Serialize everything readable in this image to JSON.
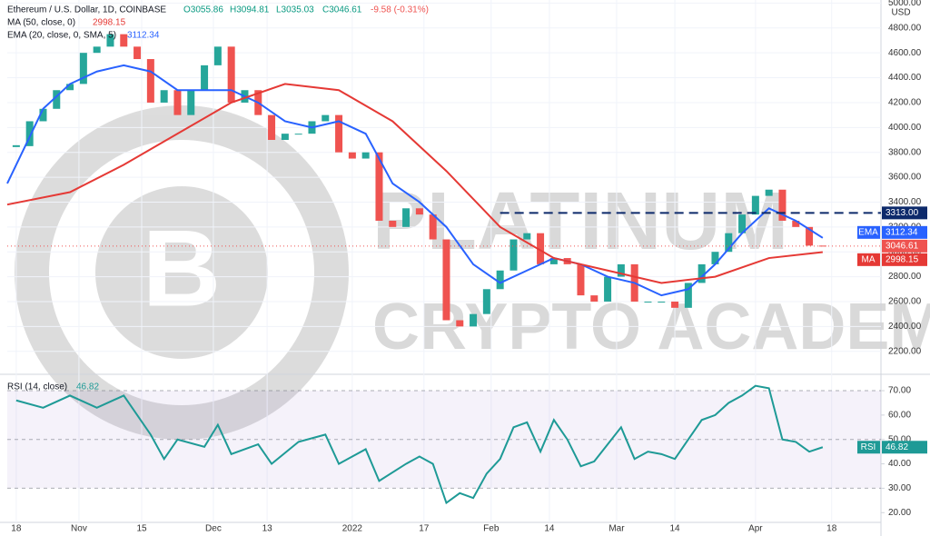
{
  "header": {
    "symbol": "Ethereum / U.S. Dollar, 1D, COINBASE",
    "open": "O3055.86",
    "high": "H3094.81",
    "low": "L3035.03",
    "close": "C3046.61",
    "change": "-9.58 (-0.31%)",
    "currency": "USD"
  },
  "watermark": {
    "line1": "PLATINUM",
    "line2": "CRYPTO ACADEMY"
  },
  "chart_data": [
    {
      "type": "candlestick",
      "xlim": [
        -2,
        193
      ],
      "ylim": [
        2030,
        5025
      ],
      "xticks": [
        {
          "value": 0,
          "label": "18"
        },
        {
          "value": 14,
          "label": "Nov"
        },
        {
          "value": 28,
          "label": "15"
        },
        {
          "value": 44,
          "label": "Dec"
        },
        {
          "value": 56,
          "label": "13"
        },
        {
          "value": 75,
          "label": "2022"
        },
        {
          "value": 91,
          "label": "17"
        },
        {
          "value": 106,
          "label": "Feb"
        },
        {
          "value": 119,
          "label": "14"
        },
        {
          "value": 134,
          "label": "Mar"
        },
        {
          "value": 147,
          "label": "14"
        },
        {
          "value": 165,
          "label": "Apr"
        },
        {
          "value": 182,
          "label": "18"
        }
      ],
      "yticks": [
        {
          "value": 2200,
          "label": "2200.00"
        },
        {
          "value": 2400,
          "label": "2400.00"
        },
        {
          "value": 2600,
          "label": "2600.00"
        },
        {
          "value": 2800,
          "label": "2800.00"
        },
        {
          "value": 3000,
          "label": "3000.00"
        },
        {
          "value": 3200,
          "label": "3200.00"
        },
        {
          "value": 3400,
          "label": "3400.00"
        },
        {
          "value": 3600,
          "label": "3600.00"
        },
        {
          "value": 3800,
          "label": "3800.00"
        },
        {
          "value": 4000,
          "label": "4000.00"
        },
        {
          "value": 4200,
          "label": "4200.00"
        },
        {
          "value": 4400,
          "label": "4400.00"
        },
        {
          "value": 4600,
          "label": "4600.00"
        },
        {
          "value": 4800,
          "label": "4800.00"
        },
        {
          "value": 5000,
          "label": "5000.00"
        }
      ],
      "grid": true,
      "up_color": "#26a69a",
      "down_color": "#ef5350",
      "candles": {
        "x": [
          0,
          3,
          6,
          9,
          12,
          15,
          18,
          21,
          24,
          27,
          30,
          33,
          36,
          39,
          42,
          45,
          48,
          51,
          54,
          57,
          60,
          63,
          66,
          69,
          72,
          75,
          78,
          81,
          84,
          87,
          90,
          93,
          96,
          99,
          102,
          105,
          108,
          111,
          114,
          117,
          120,
          123,
          126,
          129,
          132,
          135,
          138,
          141,
          144,
          147,
          150,
          153,
          156,
          159,
          162,
          165,
          168,
          171,
          174,
          177,
          180
        ],
        "close": [
          3850,
          4050,
          4150,
          4300,
          4350,
          4600,
          4650,
          4750,
          4650,
          4550,
          4200,
          4300,
          4100,
          4300,
          4500,
          4650,
          4200,
          4300,
          4100,
          3900,
          3950,
          3950,
          4050,
          4100,
          3800,
          3750,
          3800,
          3250,
          3200,
          3350,
          3300,
          3100,
          2450,
          2400,
          2500,
          2700,
          2850,
          3100,
          3150,
          2900,
          2950,
          2900,
          2650,
          2600,
          2800,
          2900,
          2600,
          2600,
          2600,
          2550,
          2750,
          2900,
          3000,
          3150,
          3300,
          3450,
          3500,
          3250,
          3200,
          3050,
          3046.61
        ]
      },
      "lines": [
        {
          "legend": "EMA (20, close, 0, SMA, 5)",
          "tag": "EMA",
          "value_label": "3112.34",
          "color": "#2962ff",
          "x": [
            -2,
            6,
            12,
            18,
            24,
            30,
            36,
            42,
            48,
            54,
            60,
            66,
            72,
            78,
            84,
            90,
            96,
            102,
            108,
            114,
            120,
            126,
            132,
            138,
            144,
            150,
            156,
            162,
            168,
            174,
            180
          ],
          "values": [
            3550,
            4150,
            4350,
            4450,
            4500,
            4450,
            4300,
            4300,
            4300,
            4200,
            4050,
            4000,
            4050,
            3950,
            3550,
            3400,
            3200,
            2900,
            2750,
            2850,
            2950,
            2900,
            2800,
            2750,
            2650,
            2700,
            2900,
            3150,
            3350,
            3250,
            3112.34
          ]
        },
        {
          "legend": "MA (50, close, 0)",
          "tag": "MA",
          "value_label": "2998.15",
          "color": "#e53935",
          "x": [
            -2,
            12,
            24,
            36,
            48,
            60,
            72,
            84,
            96,
            108,
            120,
            132,
            144,
            156,
            168,
            180
          ],
          "values": [
            3380,
            3480,
            3700,
            3950,
            4200,
            4350,
            4300,
            4050,
            3650,
            3200,
            2950,
            2850,
            2750,
            2800,
            2950,
            2998.15
          ]
        }
      ],
      "level": {
        "value": 3313,
        "label": "3313.00",
        "x_start": 108,
        "color": "#0d2a6b"
      },
      "last_price": {
        "value": 3046.61,
        "label": "3046.61"
      }
    },
    {
      "type": "line",
      "xlim": [
        -2,
        193
      ],
      "ylim": [
        16,
        75.6
      ],
      "yticks": [
        {
          "value": 20,
          "label": "20.00"
        },
        {
          "value": 30,
          "label": "30.00"
        },
        {
          "value": 40,
          "label": "40.00"
        },
        {
          "value": 50,
          "label": "50.00"
        },
        {
          "value": 60,
          "label": "60.00"
        },
        {
          "value": 70,
          "label": "70.00"
        }
      ],
      "band": [
        30,
        70
      ],
      "levels": [
        30,
        50,
        70
      ],
      "series": [
        {
          "legend": "RSI (14, close)",
          "tag": "RSI",
          "value_label": "46.82",
          "color": "#1e9a96",
          "x": [
            0,
            6,
            12,
            18,
            24,
            30,
            33,
            36,
            42,
            45,
            48,
            54,
            57,
            63,
            69,
            72,
            78,
            81,
            87,
            90,
            93,
            96,
            99,
            102,
            105,
            108,
            111,
            114,
            117,
            120,
            123,
            126,
            129,
            132,
            135,
            138,
            141,
            144,
            147,
            150,
            153,
            156,
            159,
            162,
            165,
            168,
            171,
            174,
            177,
            180
          ],
          "values": [
            66,
            63,
            68,
            63,
            68,
            52,
            42,
            50,
            47,
            56,
            44,
            48,
            40,
            49,
            52,
            40,
            46,
            33,
            40,
            43,
            40,
            24,
            28,
            26,
            36,
            42,
            55,
            57,
            45,
            58,
            50,
            39,
            41,
            48,
            55,
            42,
            45,
            44,
            42,
            50,
            58,
            60,
            65,
            68,
            72,
            71,
            50,
            49,
            45,
            46.82
          ]
        }
      ]
    }
  ]
}
